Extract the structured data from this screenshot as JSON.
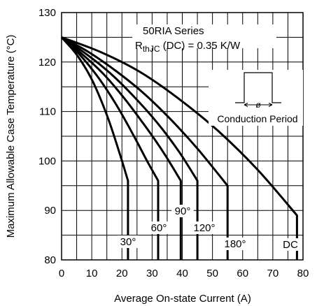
{
  "chart_data": {
    "type": "line",
    "title": "",
    "xlabel": "Average On-state Current (A)",
    "ylabel": "Maximum Allowable Case Temperature (°C)",
    "xlim": [
      0,
      80
    ],
    "ylim": [
      80,
      130
    ],
    "xticks": [
      0,
      10,
      20,
      30,
      40,
      50,
      60,
      70,
      80
    ],
    "yticks": [
      80,
      90,
      100,
      110,
      120,
      130
    ],
    "grid": true,
    "annotations": {
      "series_name": "50RIA Series",
      "rth_main": "R",
      "rth_sub": "thJC",
      "rth_rest": " (DC) = 0.35 K/W",
      "conduction_period": "Conduction Period",
      "phi_symbol": "ø"
    },
    "series": [
      {
        "name": "30°",
        "x": [
          0,
          5,
          10,
          15,
          19,
          22,
          22
        ],
        "y": [
          125,
          121.5,
          116.5,
          109.3,
          102.0,
          96.0,
          80
        ]
      },
      {
        "name": "60°",
        "x": [
          0,
          6,
          12,
          18,
          24,
          28.5,
          32,
          32
        ],
        "y": [
          125,
          121.5,
          117.0,
          111.5,
          105.0,
          99.8,
          96.0,
          80
        ]
      },
      {
        "name": "90°",
        "x": [
          0,
          7,
          14,
          21,
          28,
          34,
          39.5,
          39.5
        ],
        "y": [
          125,
          121.5,
          117.5,
          112.5,
          106.8,
          101.5,
          96.0,
          80
        ]
      },
      {
        "name": "120°",
        "x": [
          0,
          8,
          16,
          24,
          32,
          39,
          45,
          45
        ],
        "y": [
          125,
          121.7,
          117.8,
          113.0,
          107.5,
          101.8,
          96.0,
          80
        ]
      },
      {
        "name": "180°",
        "x": [
          0,
          9,
          18,
          27,
          36,
          45,
          55,
          55
        ],
        "y": [
          125,
          122.0,
          118.2,
          113.8,
          108.5,
          102.5,
          95.0,
          80
        ]
      },
      {
        "name": "DC",
        "x": [
          0,
          13,
          26,
          39,
          52,
          65,
          78,
          78
        ],
        "y": [
          125,
          122.0,
          118.0,
          112.5,
          106.0,
          98.2,
          89.0,
          80
        ]
      }
    ]
  }
}
